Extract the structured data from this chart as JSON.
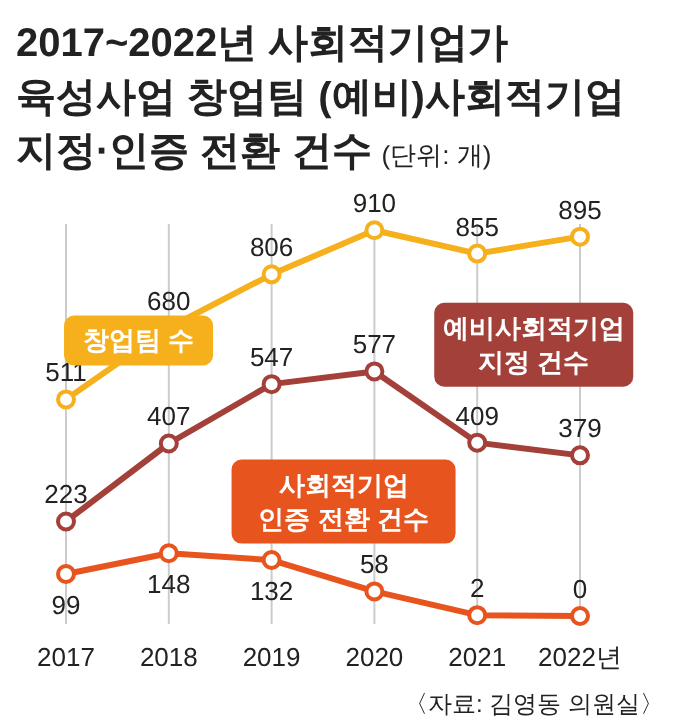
{
  "chart_data": {
    "type": "line",
    "title": "2017~2022년 사회적기업가 육성사업 창업팀 (예비)사회적기업 지정·인증 전환 건수",
    "subtitle": "(단위: 개)",
    "categories": [
      "2017",
      "2018",
      "2019",
      "2020",
      "2021",
      "2022년"
    ],
    "series": [
      {
        "name": "창업팀 수",
        "color": "#f5b01c",
        "values": [
          511,
          680,
          806,
          910,
          855,
          895
        ]
      },
      {
        "name": "예비사회적기업 지정 건수",
        "color": "#a3403a",
        "values": [
          223,
          407,
          547,
          577,
          409,
          379
        ]
      },
      {
        "name": "사회적기업 인증 전환 건수",
        "color": "#e8541e",
        "values": [
          99,
          148,
          132,
          58,
          2,
          0
        ]
      }
    ],
    "data_labels": true,
    "grid": "x",
    "tick_labels": "x",
    "marker": "circle",
    "line_style": "solid",
    "annotations": [
      "〈자료: 김영동 의원실〉"
    ]
  }
}
